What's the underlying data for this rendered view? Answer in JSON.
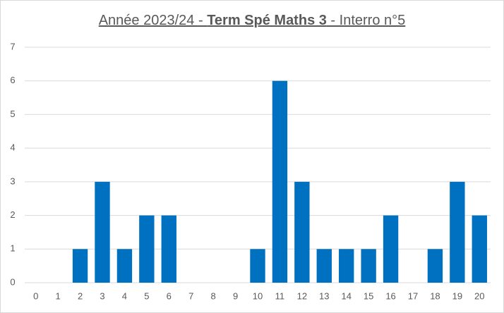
{
  "chart_data": {
    "type": "bar",
    "title": [
      "Année 2023/24 - ",
      "Term Spé Maths 3",
      " - Interro n°5"
    ],
    "categories": [
      0,
      1,
      2,
      3,
      4,
      5,
      6,
      7,
      8,
      9,
      10,
      11,
      12,
      13,
      14,
      15,
      16,
      17,
      18,
      19,
      20
    ],
    "values": [
      0,
      0,
      1,
      3,
      1,
      2,
      2,
      0,
      0,
      0,
      1,
      6,
      3,
      1,
      1,
      1,
      2,
      0,
      1,
      3,
      2
    ],
    "color": "#0070c0",
    "ylim": [
      0,
      7
    ],
    "yticks": [
      0,
      1,
      2,
      3,
      4,
      5,
      6,
      7
    ],
    "grid": true
  }
}
